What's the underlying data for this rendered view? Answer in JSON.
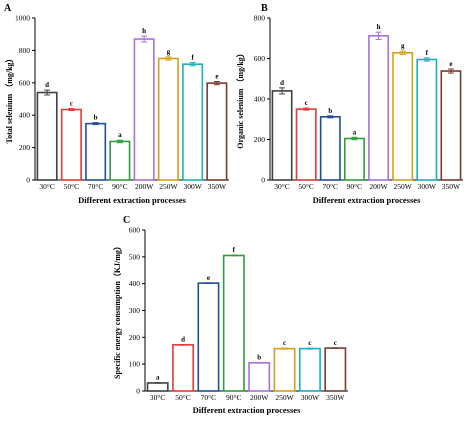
{
  "chart_data": [
    {
      "panel": "A",
      "type": "bar",
      "ylabel": "Total selenium （mg/kg）",
      "xlabel": "Different extraction processes",
      "categories": [
        "30°C",
        "50°C",
        "70°C",
        "90°C",
        "200W",
        "250W",
        "300W",
        "350W"
      ],
      "values": [
        540,
        435,
        348,
        238,
        870,
        750,
        715,
        598
      ],
      "errors": [
        15,
        6,
        6,
        8,
        18,
        10,
        10,
        10
      ],
      "letters": [
        "d",
        "c",
        "b",
        "a",
        "h",
        "g",
        "f",
        "e"
      ],
      "colors": [
        "#404040",
        "#e53935",
        "#1f4e9a",
        "#2e9d3a",
        "#a970e0",
        "#d4a017",
        "#1ab0bf",
        "#7a3b2e"
      ],
      "ylim": [
        0,
        1000
      ],
      "yticks": [
        0,
        200,
        400,
        600,
        800,
        1000
      ]
    },
    {
      "panel": "B",
      "type": "bar",
      "ylabel": "Organic selenium （mg/kg）",
      "xlabel": "Different extraction processes",
      "categories": [
        "30°C",
        "50°C",
        "70°C",
        "90°C",
        "200W",
        "250W",
        "300W",
        "350W"
      ],
      "values": [
        440,
        350,
        312,
        205,
        712,
        628,
        595,
        538
      ],
      "errors": [
        15,
        5,
        5,
        6,
        18,
        8,
        8,
        10
      ],
      "letters": [
        "d",
        "c",
        "b",
        "a",
        "h",
        "g",
        "f",
        "e"
      ],
      "colors": [
        "#404040",
        "#e53935",
        "#1f4e9a",
        "#2e9d3a",
        "#a970e0",
        "#d4a017",
        "#1ab0bf",
        "#7a3b2e"
      ],
      "ylim": [
        0,
        800
      ],
      "yticks": [
        0,
        200,
        400,
        600,
        800
      ]
    },
    {
      "panel": "C",
      "type": "bar",
      "ylabel": "Specific energy consumption（KJ/mg）",
      "xlabel": "Different extraction processes",
      "categories": [
        "30°C",
        "50°C",
        "70°C",
        "90°C",
        "200W",
        "250W",
        "300W",
        "350W"
      ],
      "values": [
        30,
        172,
        402,
        505,
        105,
        158,
        158,
        160
      ],
      "errors": [
        1,
        1,
        1,
        1,
        1,
        2,
        2,
        1
      ],
      "letters": [
        "a",
        "d",
        "e",
        "f",
        "b",
        "c",
        "c",
        "c"
      ],
      "colors": [
        "#404040",
        "#e53935",
        "#1f4e9a",
        "#2e9d3a",
        "#a970e0",
        "#d4a017",
        "#1ab0bf",
        "#7a3b2e"
      ],
      "ylim": [
        0,
        600
      ],
      "yticks": [
        0,
        100,
        200,
        300,
        400,
        500,
        600
      ]
    }
  ]
}
